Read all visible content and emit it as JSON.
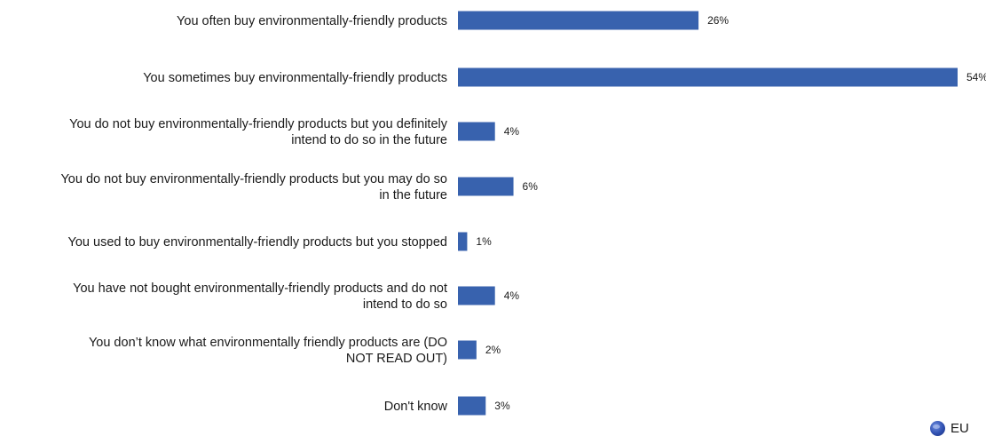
{
  "chart_data": {
    "type": "bar",
    "orientation": "horizontal",
    "categories": [
      [
        "You often buy environmentally-friendly products"
      ],
      [
        "You sometimes buy environmentally-friendly products"
      ],
      [
        "You do not buy environmentally-friendly products but you definitely",
        "intend to do so in the future"
      ],
      [
        "You do not buy environmentally-friendly products but you may do so",
        "in the future"
      ],
      [
        "You used to buy  environmentally-friendly products but you stopped"
      ],
      [
        "You have not bought environmentally-friendly products and do not",
        "intend to do so"
      ],
      [
        "You don’t know what environmentally friendly products are (DO",
        "NOT READ OUT)"
      ],
      [
        "Don't know"
      ]
    ],
    "series": [
      {
        "name": "EU",
        "values": [
          26,
          54,
          4,
          6,
          1,
          4,
          2,
          3
        ],
        "labels": [
          "26%",
          "54%",
          "4%",
          "6%",
          "1%",
          "4%",
          "2%",
          "3%"
        ]
      }
    ],
    "xlim": [
      0,
      54
    ],
    "grid": false,
    "legend": "bottom-right"
  },
  "legend": {
    "label": "EU"
  },
  "colors": {
    "bar": "#3862ae"
  }
}
